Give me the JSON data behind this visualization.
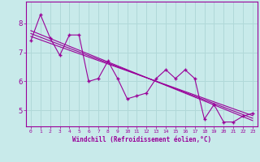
{
  "xlabel": "Windchill (Refroidissement éolien,°C)",
  "background_color": "#c8eaea",
  "grid_color": "#b0d8d8",
  "line_color": "#990099",
  "x_data": [
    0,
    1,
    2,
    3,
    4,
    5,
    6,
    7,
    8,
    9,
    10,
    11,
    12,
    13,
    14,
    15,
    16,
    17,
    18,
    19,
    20,
    21,
    22,
    23
  ],
  "y_data": [
    7.4,
    8.3,
    7.5,
    6.9,
    7.6,
    7.6,
    6.0,
    6.1,
    6.7,
    6.1,
    5.4,
    5.5,
    5.6,
    6.1,
    6.4,
    6.1,
    6.4,
    6.1,
    4.7,
    5.2,
    4.6,
    4.6,
    4.8,
    4.9
  ],
  "reg_lines": [
    [
      [
        0,
        23
      ],
      [
        7.75,
        4.65
      ]
    ],
    [
      [
        0,
        23
      ],
      [
        7.55,
        4.82
      ]
    ],
    [
      [
        0,
        23
      ],
      [
        7.65,
        4.73
      ]
    ]
  ],
  "xlim": [
    -0.5,
    23.5
  ],
  "ylim": [
    4.45,
    8.75
  ],
  "yticks": [
    5,
    6,
    7,
    8
  ],
  "xticks": [
    0,
    1,
    2,
    3,
    4,
    5,
    6,
    7,
    8,
    9,
    10,
    11,
    12,
    13,
    14,
    15,
    16,
    17,
    18,
    19,
    20,
    21,
    22,
    23
  ]
}
